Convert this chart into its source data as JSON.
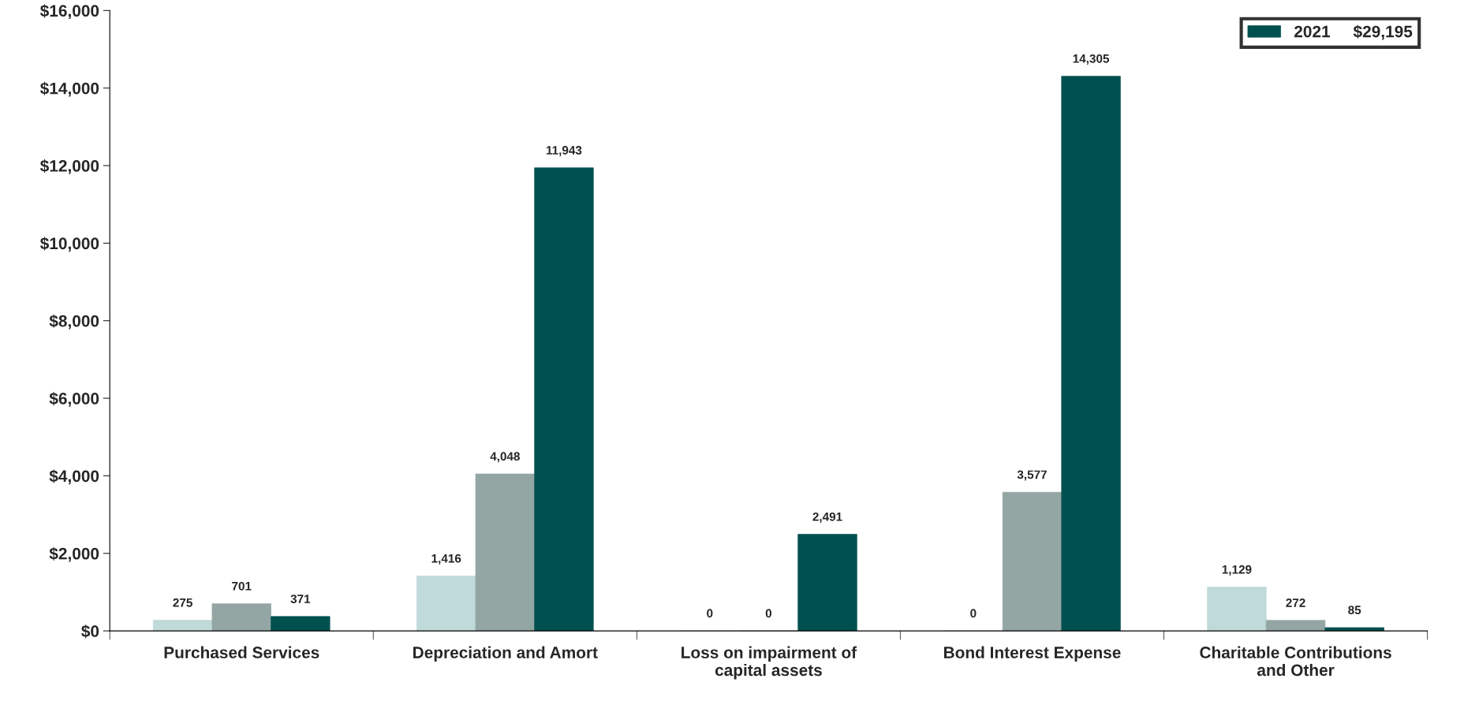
{
  "chart_data": {
    "type": "bar",
    "categories": [
      "Purchased Services",
      "Depreciation and Amort",
      "Loss on impairment of\ncapital assets",
      "Bond Interest Expense",
      "Charitable Contributions\nand Other"
    ],
    "series": [
      {
        "color": "#c0d9d9",
        "values": [
          275,
          1416,
          0,
          0,
          1129
        ],
        "value_labels": [
          "275",
          "1,416",
          "0",
          "0",
          "1,129"
        ]
      },
      {
        "color": "#93a6a4",
        "values": [
          701,
          4048,
          0,
          3577,
          272
        ],
        "value_labels": [
          "701",
          "4,048",
          "0",
          "3,577",
          "272"
        ]
      },
      {
        "name": "2021     $29,195",
        "color": "#005050",
        "values": [
          371,
          11943,
          2491,
          14305,
          85
        ],
        "value_labels": [
          "371",
          "11,943",
          "2,491",
          "14,305",
          "85"
        ]
      }
    ],
    "ylim": [
      0,
      16000
    ],
    "yticks": [
      {
        "value": 0,
        "label": "$0"
      },
      {
        "value": 2000,
        "label": "$2,000"
      },
      {
        "value": 4000,
        "label": "$4,000"
      },
      {
        "value": 6000,
        "label": "$6,000"
      },
      {
        "value": 8000,
        "label": "$8,000"
      },
      {
        "value": 10000,
        "label": "$10,000"
      },
      {
        "value": 12000,
        "label": "$12,000"
      },
      {
        "value": 14000,
        "label": "$14,000"
      },
      {
        "value": 16000,
        "label": "$16,000"
      }
    ],
    "grid": false,
    "legend": "top right"
  }
}
